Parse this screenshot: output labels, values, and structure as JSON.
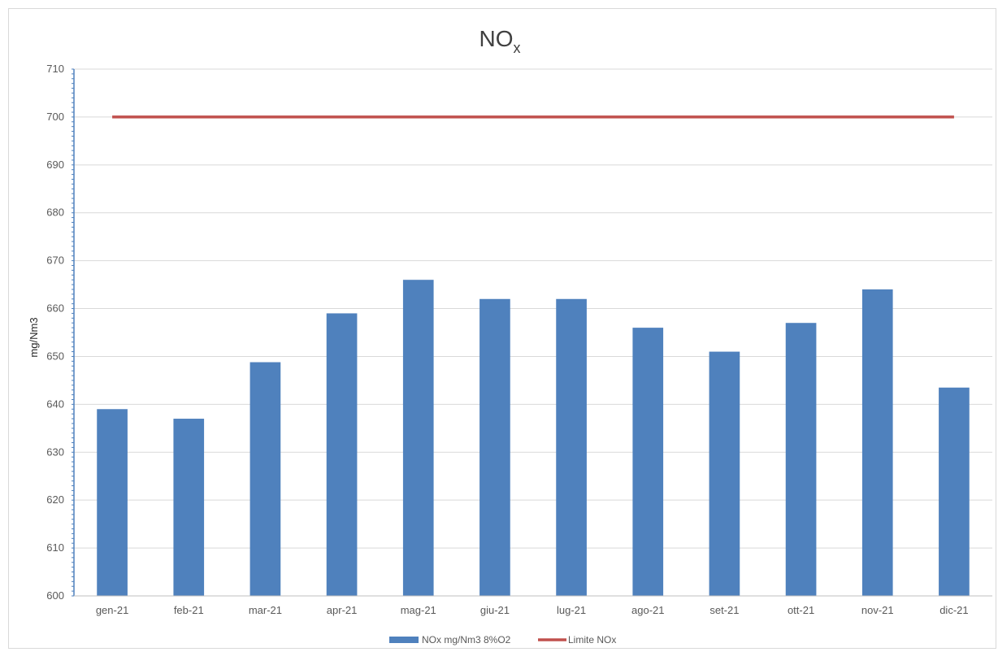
{
  "chart_data": {
    "type": "bar",
    "title": {
      "main": "NO",
      "subscript": "x"
    },
    "ylabel": "mg/Nm3",
    "xlabel": "",
    "categories": [
      "gen-21",
      "feb-21",
      "mar-21",
      "apr-21",
      "mag-21",
      "giu-21",
      "lug-21",
      "ago-21",
      "set-21",
      "ott-21",
      "nov-21",
      "dic-21"
    ],
    "series": [
      {
        "name": "NOx  mg/Nm3 8%O2",
        "type": "bar",
        "color": "#4f81bd",
        "values": [
          639,
          637,
          648.8,
          659,
          666,
          662,
          662,
          656,
          651,
          657,
          664,
          643.5
        ]
      },
      {
        "name": "Limite NOx",
        "type": "line",
        "color": "#c0504d",
        "values": [
          700,
          700,
          700,
          700,
          700,
          700,
          700,
          700,
          700,
          700,
          700,
          700
        ]
      }
    ],
    "ylim": [
      600,
      710
    ],
    "ytick_step": 10,
    "grid": true,
    "legend_position": "bottom"
  }
}
